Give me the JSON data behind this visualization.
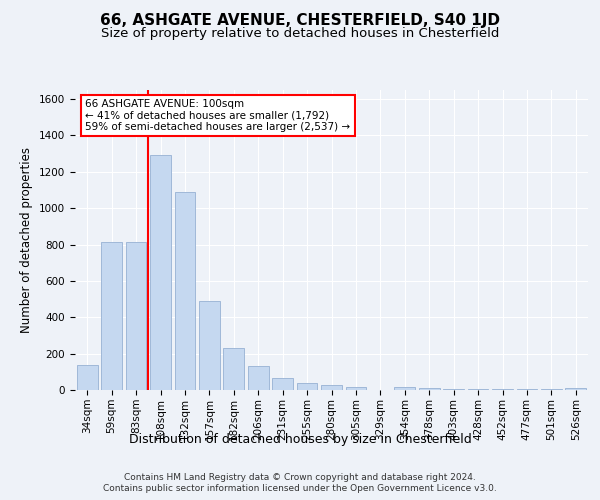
{
  "title1": "66, ASHGATE AVENUE, CHESTERFIELD, S40 1JD",
  "title2": "Size of property relative to detached houses in Chesterfield",
  "xlabel": "Distribution of detached houses by size in Chesterfield",
  "ylabel": "Number of detached properties",
  "footer": "Contains HM Land Registry data © Crown copyright and database right 2024.\nContains public sector information licensed under the Open Government Licence v3.0.",
  "categories": [
    "34sqm",
    "59sqm",
    "83sqm",
    "108sqm",
    "132sqm",
    "157sqm",
    "182sqm",
    "206sqm",
    "231sqm",
    "255sqm",
    "280sqm",
    "305sqm",
    "329sqm",
    "354sqm",
    "378sqm",
    "403sqm",
    "428sqm",
    "452sqm",
    "477sqm",
    "501sqm",
    "526sqm"
  ],
  "values": [
    140,
    815,
    815,
    1295,
    1090,
    490,
    230,
    130,
    65,
    38,
    25,
    15,
    0,
    15,
    10,
    5,
    5,
    5,
    5,
    5,
    10
  ],
  "bar_color": "#c5d8f0",
  "bar_edge_color": "#a0b8d8",
  "red_line_index": 3,
  "annotation_text": "66 ASHGATE AVENUE: 100sqm\n← 41% of detached houses are smaller (1,792)\n59% of semi-detached houses are larger (2,537) →",
  "ylim": [
    0,
    1650
  ],
  "yticks": [
    0,
    200,
    400,
    600,
    800,
    1000,
    1200,
    1400,
    1600
  ],
  "background_color": "#eef2f8",
  "plot_bg_color": "#eef2f8",
  "grid_color": "#ffffff",
  "title1_fontsize": 11,
  "title2_fontsize": 9.5,
  "xlabel_fontsize": 9,
  "ylabel_fontsize": 8.5,
  "tick_fontsize": 7.5,
  "footer_fontsize": 6.5
}
